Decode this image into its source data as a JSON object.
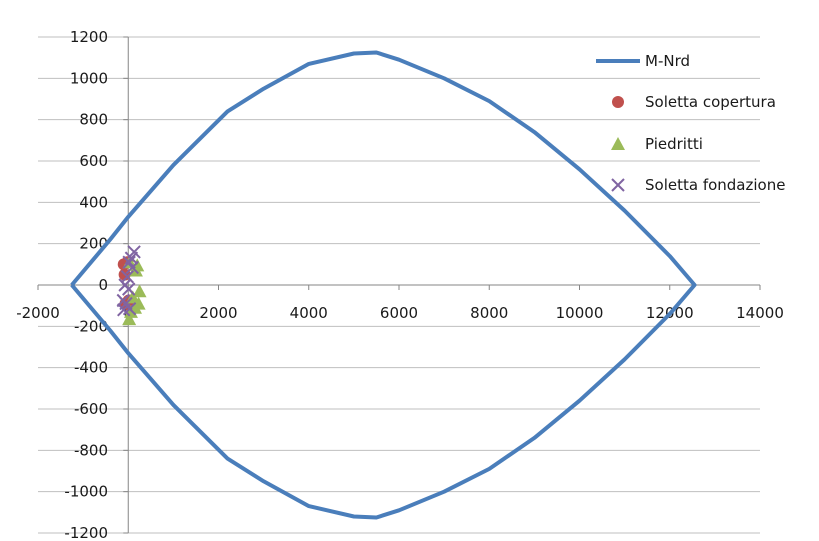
{
  "chart_data": {
    "type": "scatter",
    "title": "",
    "xlabel": "",
    "ylabel": "",
    "xlim": [
      -2000,
      14000
    ],
    "ylim": [
      -1200,
      1200
    ],
    "x_ticks": [
      -2000,
      0,
      2000,
      4000,
      6000,
      8000,
      10000,
      12000,
      14000
    ],
    "y_ticks": [
      -1200,
      -1000,
      -800,
      -600,
      -400,
      -200,
      0,
      200,
      400,
      600,
      800,
      1000,
      1200
    ],
    "grid": "horizontal",
    "legend": "right",
    "series": [
      {
        "name": "M-Nrd",
        "kind": "line",
        "color": "#4a7ebb",
        "points": [
          [
            -1250,
            0
          ],
          [
            -400,
            220
          ],
          [
            0,
            330
          ],
          [
            1000,
            580
          ],
          [
            2200,
            840
          ],
          [
            3000,
            950
          ],
          [
            4000,
            1070
          ],
          [
            5000,
            1120
          ],
          [
            5500,
            1125
          ],
          [
            6000,
            1090
          ],
          [
            7000,
            1000
          ],
          [
            8000,
            890
          ],
          [
            9000,
            740
          ],
          [
            10000,
            560
          ],
          [
            11000,
            360
          ],
          [
            12000,
            140
          ],
          [
            12550,
            0
          ],
          [
            12000,
            -140
          ],
          [
            11000,
            -360
          ],
          [
            10000,
            -560
          ],
          [
            9000,
            -740
          ],
          [
            8000,
            -890
          ],
          [
            7000,
            -1000
          ],
          [
            6000,
            -1090
          ],
          [
            5500,
            -1125
          ],
          [
            5000,
            -1120
          ],
          [
            4000,
            -1070
          ],
          [
            3000,
            -950
          ],
          [
            2200,
            -840
          ],
          [
            1000,
            -580
          ],
          [
            0,
            -330
          ],
          [
            -400,
            -220
          ],
          [
            -1250,
            0
          ]
        ]
      },
      {
        "name": "Soletta copertura",
        "kind": "scatter",
        "marker": "circle",
        "color": "#c0504d",
        "points": [
          [
            -100,
            100
          ],
          [
            -20,
            110
          ],
          [
            -80,
            50
          ],
          [
            80,
            -105
          ],
          [
            -60,
            -90
          ],
          [
            10,
            -75
          ],
          [
            40,
            -100
          ]
        ]
      },
      {
        "name": "Piedritti",
        "kind": "scatter",
        "marker": "triangle",
        "color": "#9bbb59",
        "points": [
          [
            200,
            95
          ],
          [
            170,
            70
          ],
          [
            30,
            110
          ],
          [
            250,
            -30
          ],
          [
            100,
            -60
          ],
          [
            230,
            -90
          ],
          [
            60,
            -130
          ],
          [
            20,
            -165
          ],
          [
            150,
            -110
          ]
        ]
      },
      {
        "name": "Soletta fondazione",
        "kind": "scatter",
        "marker": "x",
        "color": "#8064a2",
        "points": [
          [
            130,
            160
          ],
          [
            70,
            130
          ],
          [
            20,
            110
          ],
          [
            90,
            85
          ],
          [
            -20,
            40
          ],
          [
            -70,
            0
          ],
          [
            10,
            -20
          ],
          [
            -50,
            -90
          ],
          [
            -110,
            -75
          ],
          [
            -100,
            -120
          ],
          [
            30,
            -115
          ]
        ]
      }
    ]
  }
}
